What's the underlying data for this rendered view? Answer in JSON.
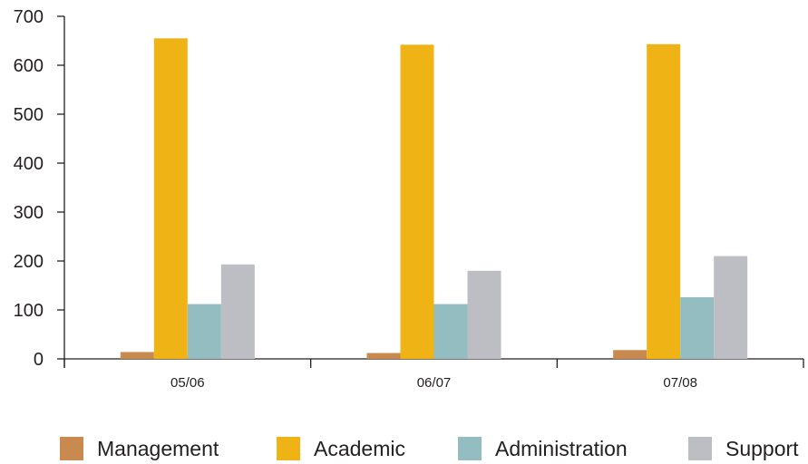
{
  "chart_data": {
    "type": "bar",
    "categories": [
      "05/06",
      "06/07",
      "07/08"
    ],
    "series": [
      {
        "name": "Management",
        "color": "#c98a50",
        "values": [
          14,
          12,
          18
        ]
      },
      {
        "name": "Academic",
        "color": "#efb316",
        "values": [
          655,
          642,
          643
        ]
      },
      {
        "name": "Administration",
        "color": "#93bdc1",
        "values": [
          112,
          112,
          126
        ]
      },
      {
        "name": "Support",
        "color": "#bdbec3",
        "values": [
          193,
          180,
          210
        ]
      }
    ],
    "title": "",
    "xlabel": "",
    "ylabel": "",
    "ylim": [
      0,
      700
    ],
    "yticks": [
      0,
      100,
      200,
      300,
      400,
      500,
      600,
      700
    ],
    "legend_position": "bottom",
    "grid": false
  }
}
